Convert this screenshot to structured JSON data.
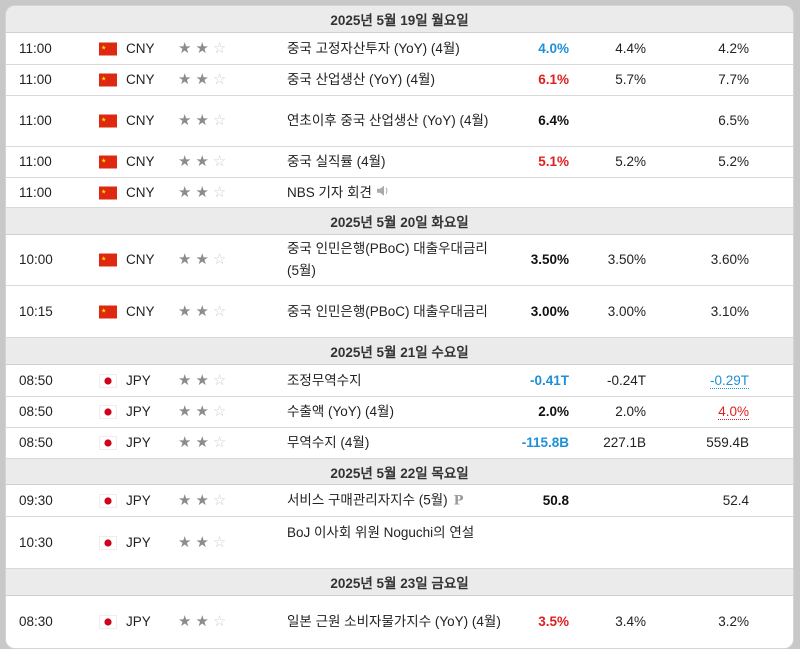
{
  "days": [
    {
      "label": "2025년 5월 19일 월요일",
      "events": [
        {
          "time": "11:00",
          "country": "cn",
          "currency": "CNY",
          "importance": 2,
          "event": "중국 고정자산투자 (YoY) (4월)",
          "actual": "4.0%",
          "actual_color": "#1e90d6",
          "forecast": "4.4%",
          "previous": "4.2%"
        },
        {
          "time": "11:00",
          "country": "cn",
          "currency": "CNY",
          "importance": 2,
          "event": "중국 산업생산 (YoY) (4월)",
          "actual": "6.1%",
          "actual_color": "#e11e1e",
          "forecast": "5.7%",
          "previous": "7.7%"
        },
        {
          "time": "11:00",
          "country": "cn",
          "currency": "CNY",
          "importance": 2,
          "event": "연초이후 중국 산업생산 (YoY) (4월)",
          "actual": "6.4%",
          "actual_color": "#111111",
          "forecast": "",
          "previous": "6.5%"
        },
        {
          "time": "11:00",
          "country": "cn",
          "currency": "CNY",
          "importance": 2,
          "event": "중국 실직률 (4월)",
          "actual": "5.1%",
          "actual_color": "#e11e1e",
          "forecast": "5.2%",
          "previous": "5.2%"
        },
        {
          "time": "11:00",
          "country": "cn",
          "currency": "CNY",
          "importance": 2,
          "event": "NBS 기자 회견",
          "actual": "",
          "forecast": "",
          "previous": "",
          "icon": "speaker-icon"
        }
      ]
    },
    {
      "label": "2025년 5월 20일 화요일",
      "events": [
        {
          "time": "10:00",
          "country": "cn",
          "currency": "CNY",
          "importance": 2,
          "event": "중국 인민은행(PBoC) 대출우대금리 (5월)",
          "actual": "3.50%",
          "actual_color": "#111111",
          "forecast": "3.50%",
          "previous": "3.60%"
        },
        {
          "time": "10:15",
          "country": "cn",
          "currency": "CNY",
          "importance": 2,
          "event": "중국 인민은행(PBoC) 대출우대금리",
          "actual": "3.00%",
          "actual_color": "#111111",
          "forecast": "3.00%",
          "previous": "3.10%"
        }
      ]
    },
    {
      "label": "2025년 5월 21일 수요일",
      "events": [
        {
          "time": "08:50",
          "country": "jp",
          "currency": "JPY",
          "importance": 2,
          "event": "조정무역수지",
          "actual": "-0.41T",
          "actual_color": "#1e90d6",
          "forecast": "-0.24T",
          "previous": "-0.29T",
          "previous_revised": "blue"
        },
        {
          "time": "08:50",
          "country": "jp",
          "currency": "JPY",
          "importance": 2,
          "event": "수출액 (YoY) (4월)",
          "actual": "2.0%",
          "actual_color": "#111111",
          "forecast": "2.0%",
          "previous": "4.0%",
          "previous_revised": "red"
        },
        {
          "time": "08:50",
          "country": "jp",
          "currency": "JPY",
          "importance": 2,
          "event": "무역수지 (4월)",
          "actual": "-115.8B",
          "actual_color": "#1e90d6",
          "forecast": "227.1B",
          "previous": "559.4B"
        }
      ]
    },
    {
      "label": "2025년 5월 22일 목요일",
      "events": [
        {
          "time": "09:30",
          "country": "jp",
          "currency": "JPY",
          "importance": 2,
          "event": "서비스 구매관리자지수 (5월)",
          "actual": "50.8",
          "actual_color": "#111111",
          "forecast": "",
          "previous": "52.4",
          "badge": "P"
        },
        {
          "time": "10:30",
          "country": "jp",
          "currency": "JPY",
          "importance": 2,
          "event": "BoJ 이사회 위원 Noguchi의 연설",
          "actual": "",
          "forecast": "",
          "previous": ""
        }
      ]
    },
    {
      "label": "2025년 5월 23일 금요일",
      "events": [
        {
          "time": "08:30",
          "country": "jp",
          "currency": "JPY",
          "importance": 2,
          "event": "일본 근원 소비자물가지수 (YoY) (4월)",
          "actual": "3.5%",
          "actual_color": "#e11e1e",
          "forecast": "3.4%",
          "previous": "3.2%"
        }
      ]
    }
  ],
  "colors": {
    "better": "#1e90d6",
    "worse": "#e11e1e",
    "neutral": "#111111"
  }
}
